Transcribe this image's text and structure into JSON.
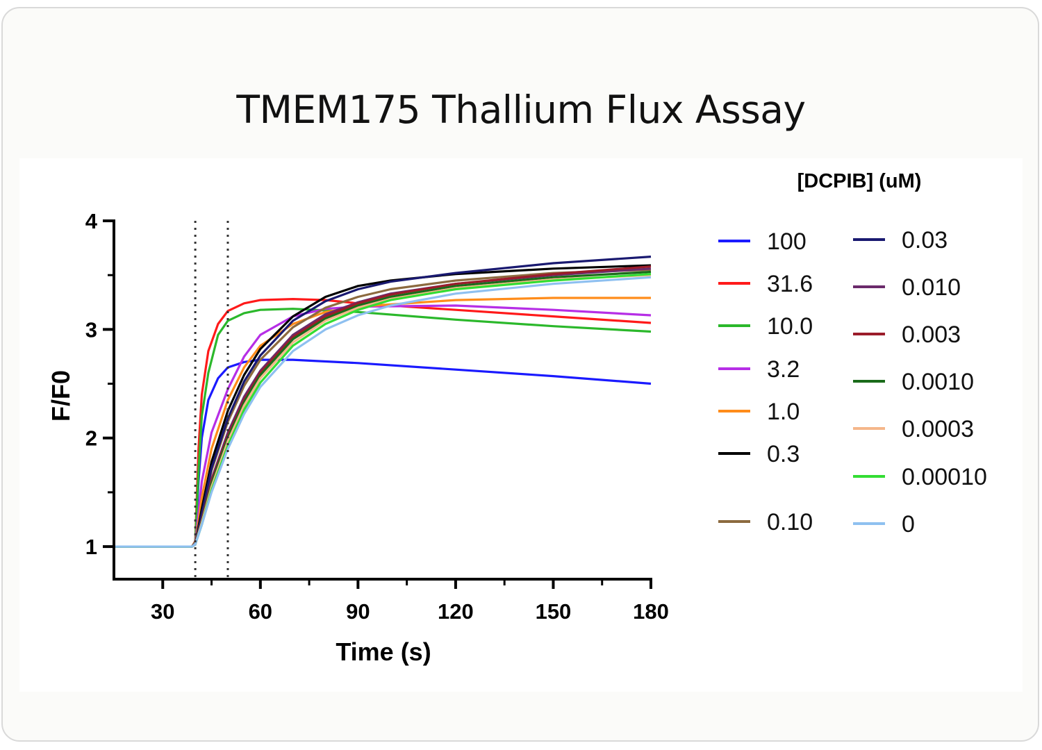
{
  "title": "TMEM175 Thallium Flux Assay",
  "chart_data": {
    "type": "line",
    "xlabel": "Time (s)",
    "ylabel": "F/F0",
    "xlim": [
      15,
      180
    ],
    "ylim": [
      0.7,
      4
    ],
    "xticks": [
      30,
      60,
      90,
      120,
      150,
      180
    ],
    "yticks": [
      1,
      2,
      3,
      4
    ],
    "vlines": [
      40,
      50
    ],
    "legend_title": "[DCPIB] (uM)",
    "legend_position": "right",
    "grid": false,
    "series": [
      {
        "name": "100",
        "color": "#1a1aff",
        "values": [
          [
            15,
            1.0
          ],
          [
            39,
            1.0
          ],
          [
            40,
            1.02
          ],
          [
            41,
            1.6
          ],
          [
            42,
            2.0
          ],
          [
            44,
            2.35
          ],
          [
            47,
            2.55
          ],
          [
            50,
            2.65
          ],
          [
            55,
            2.7
          ],
          [
            60,
            2.72
          ],
          [
            70,
            2.72
          ],
          [
            90,
            2.69
          ],
          [
            120,
            2.63
          ],
          [
            150,
            2.57
          ],
          [
            180,
            2.5
          ]
        ]
      },
      {
        "name": "31.6",
        "color": "#ff1a1a",
        "values": [
          [
            15,
            1.0
          ],
          [
            39,
            1.0
          ],
          [
            40,
            1.05
          ],
          [
            41,
            1.9
          ],
          [
            42,
            2.4
          ],
          [
            44,
            2.8
          ],
          [
            47,
            3.05
          ],
          [
            50,
            3.17
          ],
          [
            55,
            3.24
          ],
          [
            60,
            3.27
          ],
          [
            70,
            3.28
          ],
          [
            80,
            3.27
          ],
          [
            90,
            3.24
          ],
          [
            120,
            3.18
          ],
          [
            150,
            3.12
          ],
          [
            180,
            3.06
          ]
        ]
      },
      {
        "name": "10.0",
        "color": "#2bb82b",
        "values": [
          [
            15,
            1.0
          ],
          [
            39,
            1.0
          ],
          [
            40,
            1.04
          ],
          [
            41,
            1.7
          ],
          [
            42,
            2.2
          ],
          [
            44,
            2.6
          ],
          [
            47,
            2.95
          ],
          [
            50,
            3.08
          ],
          [
            55,
            3.15
          ],
          [
            60,
            3.18
          ],
          [
            70,
            3.19
          ],
          [
            90,
            3.16
          ],
          [
            120,
            3.09
          ],
          [
            150,
            3.03
          ],
          [
            180,
            2.98
          ]
        ]
      },
      {
        "name": "3.2",
        "color": "#b62ee6",
        "values": [
          [
            15,
            1.0
          ],
          [
            39,
            1.0
          ],
          [
            40,
            1.03
          ],
          [
            42,
            1.6
          ],
          [
            45,
            2.05
          ],
          [
            50,
            2.45
          ],
          [
            55,
            2.75
          ],
          [
            60,
            2.95
          ],
          [
            70,
            3.12
          ],
          [
            80,
            3.19
          ],
          [
            90,
            3.21
          ],
          [
            120,
            3.22
          ],
          [
            150,
            3.18
          ],
          [
            180,
            3.13
          ]
        ]
      },
      {
        "name": "1.0",
        "color": "#ff8c1a",
        "values": [
          [
            15,
            1.0
          ],
          [
            39,
            1.0
          ],
          [
            40,
            1.02
          ],
          [
            42,
            1.45
          ],
          [
            45,
            1.9
          ],
          [
            50,
            2.35
          ],
          [
            55,
            2.65
          ],
          [
            60,
            2.85
          ],
          [
            70,
            3.05
          ],
          [
            80,
            3.16
          ],
          [
            90,
            3.21
          ],
          [
            120,
            3.27
          ],
          [
            150,
            3.29
          ],
          [
            180,
            3.29
          ]
        ]
      },
      {
        "name": "0.3",
        "color": "#000000",
        "values": [
          [
            15,
            1.0
          ],
          [
            39,
            1.0
          ],
          [
            40,
            1.02
          ],
          [
            42,
            1.35
          ],
          [
            45,
            1.78
          ],
          [
            50,
            2.25
          ],
          [
            55,
            2.58
          ],
          [
            60,
            2.82
          ],
          [
            70,
            3.12
          ],
          [
            80,
            3.3
          ],
          [
            90,
            3.4
          ],
          [
            100,
            3.45
          ],
          [
            120,
            3.51
          ],
          [
            150,
            3.56
          ],
          [
            180,
            3.59
          ]
        ]
      },
      {
        "name": "0.10",
        "color": "#8c6a3f",
        "values": [
          [
            15,
            1.0
          ],
          [
            39,
            1.0
          ],
          [
            40,
            1.02
          ],
          [
            42,
            1.3
          ],
          [
            45,
            1.7
          ],
          [
            50,
            2.15
          ],
          [
            55,
            2.48
          ],
          [
            60,
            2.72
          ],
          [
            70,
            3.02
          ],
          [
            80,
            3.2
          ],
          [
            90,
            3.3
          ],
          [
            100,
            3.37
          ],
          [
            120,
            3.45
          ],
          [
            150,
            3.52
          ],
          [
            180,
            3.55
          ]
        ]
      },
      {
        "name": "0.03",
        "color": "#191970",
        "values": [
          [
            15,
            1.0
          ],
          [
            39,
            1.0
          ],
          [
            40,
            1.02
          ],
          [
            42,
            1.3
          ],
          [
            45,
            1.72
          ],
          [
            50,
            2.18
          ],
          [
            55,
            2.52
          ],
          [
            60,
            2.76
          ],
          [
            70,
            3.08
          ],
          [
            80,
            3.26
          ],
          [
            90,
            3.37
          ],
          [
            100,
            3.44
          ],
          [
            120,
            3.52
          ],
          [
            150,
            3.61
          ],
          [
            180,
            3.67
          ]
        ]
      },
      {
        "name": "0.010",
        "color": "#6b2a6b",
        "values": [
          [
            15,
            1.0
          ],
          [
            39,
            1.0
          ],
          [
            40,
            1.02
          ],
          [
            42,
            1.25
          ],
          [
            45,
            1.62
          ],
          [
            50,
            2.05
          ],
          [
            55,
            2.38
          ],
          [
            60,
            2.62
          ],
          [
            70,
            2.95
          ],
          [
            80,
            3.14
          ],
          [
            90,
            3.25
          ],
          [
            100,
            3.33
          ],
          [
            120,
            3.42
          ],
          [
            150,
            3.5
          ],
          [
            180,
            3.56
          ]
        ]
      },
      {
        "name": "0.003",
        "color": "#9b1c2a",
        "values": [
          [
            15,
            1.0
          ],
          [
            39,
            1.0
          ],
          [
            40,
            1.02
          ],
          [
            42,
            1.24
          ],
          [
            45,
            1.6
          ],
          [
            50,
            2.02
          ],
          [
            55,
            2.35
          ],
          [
            60,
            2.6
          ],
          [
            70,
            2.93
          ],
          [
            80,
            3.12
          ],
          [
            90,
            3.24
          ],
          [
            100,
            3.32
          ],
          [
            120,
            3.42
          ],
          [
            150,
            3.51
          ],
          [
            180,
            3.58
          ]
        ]
      },
      {
        "name": "0.0010",
        "color": "#1a6b1a",
        "values": [
          [
            15,
            1.0
          ],
          [
            39,
            1.0
          ],
          [
            40,
            1.02
          ],
          [
            42,
            1.23
          ],
          [
            45,
            1.58
          ],
          [
            50,
            2.0
          ],
          [
            55,
            2.33
          ],
          [
            60,
            2.58
          ],
          [
            70,
            2.91
          ],
          [
            80,
            3.1
          ],
          [
            90,
            3.22
          ],
          [
            100,
            3.3
          ],
          [
            120,
            3.4
          ],
          [
            150,
            3.48
          ],
          [
            180,
            3.53
          ]
        ]
      },
      {
        "name": "0.0003",
        "color": "#f5b78a",
        "values": [
          [
            15,
            1.0
          ],
          [
            39,
            1.0
          ],
          [
            40,
            1.02
          ],
          [
            42,
            1.22
          ],
          [
            45,
            1.55
          ],
          [
            50,
            1.97
          ],
          [
            55,
            2.3
          ],
          [
            60,
            2.55
          ],
          [
            70,
            2.88
          ],
          [
            80,
            3.08
          ],
          [
            90,
            3.2
          ],
          [
            100,
            3.28
          ],
          [
            120,
            3.38
          ],
          [
            150,
            3.46
          ],
          [
            180,
            3.5
          ]
        ]
      },
      {
        "name": "0.00010",
        "color": "#33dd33",
        "values": [
          [
            15,
            1.0
          ],
          [
            39,
            1.0
          ],
          [
            40,
            1.02
          ],
          [
            42,
            1.2
          ],
          [
            45,
            1.52
          ],
          [
            50,
            1.93
          ],
          [
            55,
            2.26
          ],
          [
            60,
            2.51
          ],
          [
            70,
            2.85
          ],
          [
            80,
            3.05
          ],
          [
            90,
            3.18
          ],
          [
            100,
            3.27
          ],
          [
            120,
            3.37
          ],
          [
            150,
            3.45
          ],
          [
            180,
            3.51
          ]
        ]
      },
      {
        "name": "0",
        "color": "#8ec0f0",
        "values": [
          [
            15,
            1.0
          ],
          [
            39,
            1.0
          ],
          [
            40,
            1.02
          ],
          [
            42,
            1.2
          ],
          [
            45,
            1.5
          ],
          [
            50,
            1.9
          ],
          [
            55,
            2.22
          ],
          [
            60,
            2.47
          ],
          [
            70,
            2.8
          ],
          [
            80,
            3.0
          ],
          [
            90,
            3.13
          ],
          [
            100,
            3.22
          ],
          [
            120,
            3.33
          ],
          [
            150,
            3.42
          ],
          [
            180,
            3.48
          ]
        ]
      }
    ]
  }
}
